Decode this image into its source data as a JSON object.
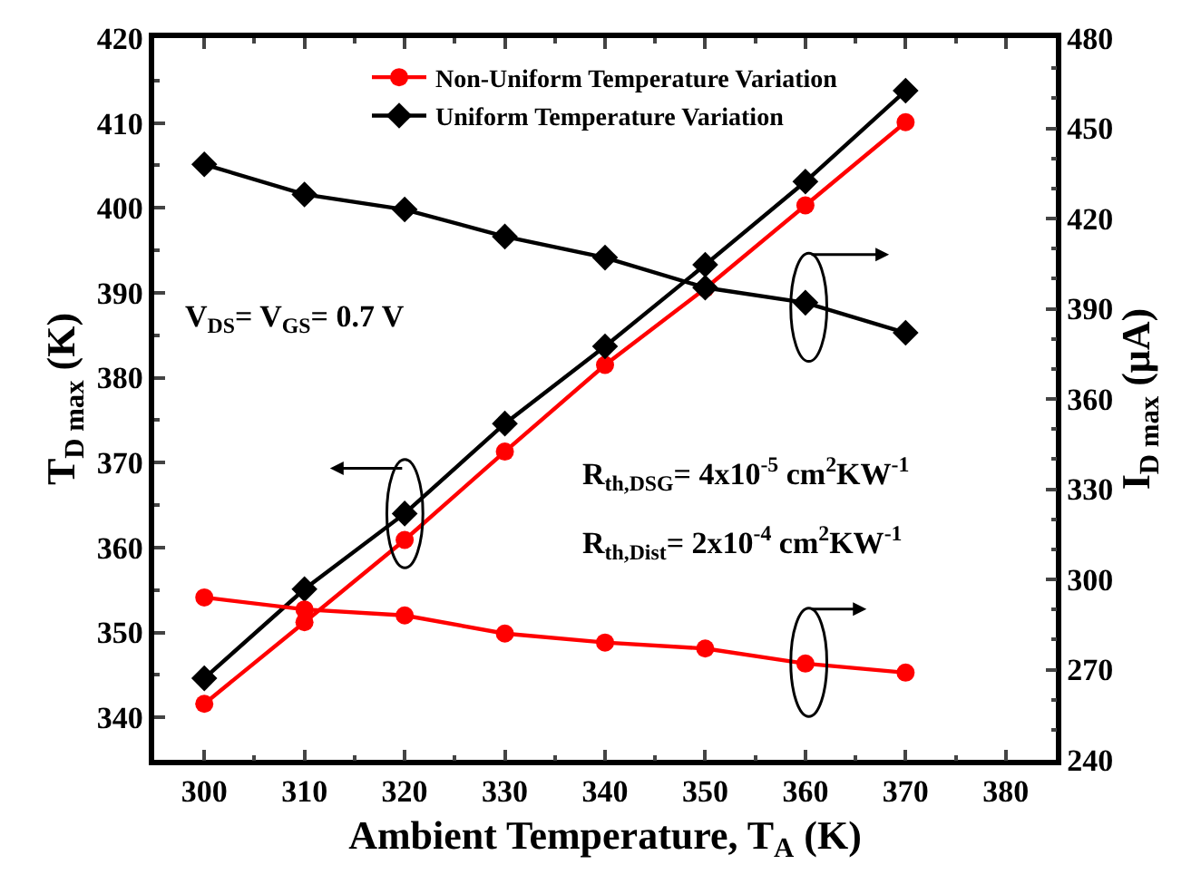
{
  "chart_data": {
    "type": "line",
    "xlabel": "Ambient Temperature, T$_{A}$ (K)",
    "ylabel": "T$_{D max}$ (K)",
    "y2label": "I$_{D max}$ (μA)",
    "x": [
      300,
      310,
      320,
      330,
      340,
      350,
      360,
      370
    ],
    "series": [
      {
        "name": "Non-Uniform Temperature Variation",
        "color": "#ff0000",
        "marker": "circle",
        "values": [
          341.6,
          351.2,
          360.9,
          371.3,
          381.5,
          390.5,
          400.3,
          410.1
        ]
      },
      {
        "name": "Uniform Temperature Variation",
        "color": "#000000",
        "marker": "diamond",
        "values": [
          344.6,
          355.1,
          364.0,
          374.6,
          383.7,
          393.3,
          403.1,
          413.8
        ]
      },
      {
        "color": "#ff0000",
        "marker": "circle",
        "axis": "y2",
        "values": [
          294,
          290,
          288,
          282,
          279,
          277,
          272,
          269
        ]
      },
      {
        "color": "#000000",
        "marker": "diamond",
        "axis": "y2",
        "values": [
          438,
          428,
          423,
          414,
          407,
          397,
          392,
          382
        ]
      }
    ],
    "xlim": [
      295,
      385
    ],
    "xticks": [
      300,
      310,
      320,
      330,
      340,
      350,
      360,
      370,
      380
    ],
    "ylim": [
      335,
      420
    ],
    "yticks": [
      340,
      350,
      360,
      370,
      380,
      390,
      400,
      410,
      420
    ],
    "y2lim": [
      240,
      480
    ],
    "y2ticks": [
      240,
      270,
      300,
      330,
      360,
      390,
      420,
      450,
      480
    ],
    "annotations": [
      "V$_{DS}$= V$_{GS}$= 0.7 V",
      "R$_{th,DSG}$= 4x10$^{-5}$ cm$^{2}$KW$^{-1}$",
      "R$_{th,Dist}$= 2x10$^{-4}$ cm$^{2}$KW$^{-1}$"
    ],
    "legend": "top",
    "line_style": "solid"
  }
}
